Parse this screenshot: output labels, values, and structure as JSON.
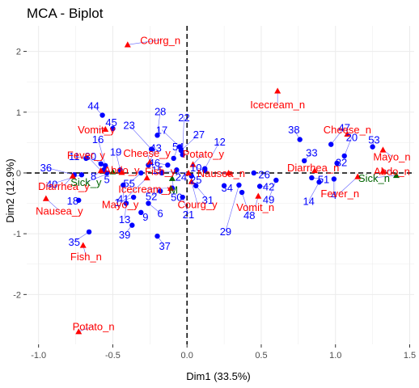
{
  "colors": {
    "individuals": "#0000ff",
    "variables": "#ff0000",
    "supplementary": "#006400",
    "repel_line": "#6666ff",
    "grid": "#ebebeb",
    "zero_line": "#000000"
  },
  "chart_data": {
    "type": "scatter",
    "title": "MCA - Biplot",
    "xlabel": "Dim1 (33.5%)",
    "ylabel": "Dim2 (12.9%)",
    "xlim": [
      -1.08,
      1.53
    ],
    "ylim": [
      -2.82,
      2.42
    ],
    "xticks": [
      -1.0,
      -0.5,
      0.0,
      0.5,
      1.0,
      1.5
    ],
    "xtick_labels": [
      "-1.0",
      "-0.5",
      "0.0",
      "0.5",
      "1.0",
      "1.5"
    ],
    "yticks": [
      -2,
      -1,
      0,
      1,
      2
    ],
    "ytick_labels": [
      "-2",
      "-1",
      "0",
      "1",
      "2"
    ],
    "grid": true,
    "legend": "none",
    "individuals": [
      {
        "label": "1",
        "x": -0.36,
        "y": -0.4,
        "lx": -0.47,
        "ly": -0.48
      },
      {
        "label": "4",
        "x": 0.99,
        "y": -0.1,
        "lx": 0.99,
        "ly": -0.36
      },
      {
        "label": "5",
        "x": -0.54,
        "y": 0.0,
        "lx": -0.54,
        "ly": -0.1
      },
      {
        "label": "6",
        "x": -0.26,
        "y": -0.5,
        "lx": -0.18,
        "ly": -0.66
      },
      {
        "label": "8",
        "x": -0.56,
        "y": 0.05,
        "lx": -0.63,
        "ly": -0.05
      },
      {
        "label": "9",
        "x": -0.31,
        "y": -0.65,
        "lx": -0.28,
        "ly": -0.72
      },
      {
        "label": "10",
        "x": 0.12,
        "y": 0.04,
        "lx": 0.06,
        "ly": 0.09
      },
      {
        "label": "11",
        "x": -0.68,
        "y": 0.24,
        "lx": -0.76,
        "ly": 0.28
      },
      {
        "label": "12",
        "x": 0.12,
        "y": 0.07,
        "lx": 0.22,
        "ly": 0.52
      },
      {
        "label": "13",
        "x": -0.41,
        "y": -0.5,
        "lx": -0.42,
        "ly": -0.76
      },
      {
        "label": "14",
        "x": 0.89,
        "y": -0.15,
        "lx": 0.82,
        "ly": -0.46
      },
      {
        "label": "15",
        "x": -0.17,
        "y": 0.0,
        "lx": -0.2,
        "ly": 0.05
      },
      {
        "label": "16",
        "x": -0.55,
        "y": 0.12,
        "lx": -0.6,
        "ly": 0.56
      },
      {
        "label": "17",
        "x": -0.05,
        "y": 0.43,
        "lx": -0.17,
        "ly": 0.71
      },
      {
        "label": "18",
        "x": -0.73,
        "y": -0.45,
        "lx": -0.77,
        "ly": -0.45
      },
      {
        "label": "19",
        "x": -0.45,
        "y": 0.05,
        "lx": -0.48,
        "ly": 0.35
      },
      {
        "label": "20",
        "x": 1.06,
        "y": 0.28,
        "lx": 1.11,
        "ly": 0.59
      },
      {
        "label": "21",
        "x": -0.03,
        "y": -0.4,
        "lx": 0.01,
        "ly": -0.68
      },
      {
        "label": "22",
        "x": -0.03,
        "y": 0.3,
        "lx": -0.02,
        "ly": 0.92
      },
      {
        "label": "23",
        "x": -0.24,
        "y": 0.39,
        "lx": -0.39,
        "ly": 0.79
      },
      {
        "label": "24",
        "x": -0.07,
        "y": 0.05,
        "lx": -0.04,
        "ly": -0.06
      },
      {
        "label": "25",
        "x": 0.03,
        "y": -0.05,
        "lx": 0.06,
        "ly": -0.11
      },
      {
        "label": "26",
        "x": 0.45,
        "y": 0.0,
        "lx": 0.52,
        "ly": -0.02
      },
      {
        "label": "27",
        "x": -0.04,
        "y": 0.37,
        "lx": 0.08,
        "ly": 0.64
      },
      {
        "label": "28",
        "x": -0.2,
        "y": 0.62,
        "lx": -0.18,
        "ly": 1.02
      },
      {
        "label": "29",
        "x": 0.35,
        "y": -0.2,
        "lx": 0.26,
        "ly": -0.96
      },
      {
        "label": "30",
        "x": -0.58,
        "y": 0.15,
        "lx": -0.65,
        "ly": 0.28
      },
      {
        "label": "31",
        "x": 0.06,
        "y": -0.21,
        "lx": 0.14,
        "ly": -0.44
      },
      {
        "label": "32",
        "x": 1.01,
        "y": 0.16,
        "lx": 1.04,
        "ly": 0.18
      },
      {
        "label": "33",
        "x": 0.79,
        "y": 0.2,
        "lx": 0.84,
        "ly": 0.34
      },
      {
        "label": "34",
        "x": 0.25,
        "y": -0.21,
        "lx": 0.27,
        "ly": -0.24
      },
      {
        "label": "35",
        "x": -0.66,
        "y": -0.97,
        "lx": -0.76,
        "ly": -1.13
      },
      {
        "label": "36",
        "x": -0.76,
        "y": -0.03,
        "lx": -0.95,
        "ly": 0.09
      },
      {
        "label": "37",
        "x": -0.2,
        "y": -1.04,
        "lx": -0.15,
        "ly": -1.2
      },
      {
        "label": "38",
        "x": 0.76,
        "y": 0.55,
        "lx": 0.72,
        "ly": 0.72
      },
      {
        "label": "39",
        "x": -0.37,
        "y": -0.86,
        "lx": -0.42,
        "ly": -1.01
      },
      {
        "label": "40",
        "x": -0.71,
        "y": -0.03,
        "lx": -0.91,
        "ly": -0.18
      },
      {
        "label": "41",
        "x": -0.43,
        "y": -0.2,
        "lx": -0.43,
        "ly": -0.42
      },
      {
        "label": "42",
        "x": 0.49,
        "y": -0.22,
        "lx": 0.55,
        "ly": -0.22
      },
      {
        "label": "43",
        "x": -0.26,
        "y": 0.13,
        "lx": -0.21,
        "ly": 0.42
      },
      {
        "label": "44",
        "x": -0.57,
        "y": 0.95,
        "lx": -0.63,
        "ly": 1.11
      },
      {
        "label": "45",
        "x": -0.5,
        "y": 0.73,
        "lx": -0.51,
        "ly": 0.84
      },
      {
        "label": "46",
        "x": -0.13,
        "y": 0.13,
        "lx": -0.22,
        "ly": 0.17
      },
      {
        "label": "47",
        "x": 0.97,
        "y": 0.47,
        "lx": 1.06,
        "ly": 0.75
      },
      {
        "label": "48",
        "x": 0.37,
        "y": -0.32,
        "lx": 0.42,
        "ly": -0.69
      },
      {
        "label": "49",
        "x": 0.6,
        "y": -0.12,
        "lx": 0.55,
        "ly": -0.43
      },
      {
        "label": "50",
        "x": -0.1,
        "y": -0.25,
        "lx": -0.07,
        "ly": -0.39
      },
      {
        "label": "51",
        "x": 0.84,
        "y": -0.08,
        "lx": 0.92,
        "ly": -0.1
      },
      {
        "label": "52",
        "x": -0.18,
        "y": -0.3,
        "lx": -0.24,
        "ly": -0.38
      },
      {
        "label": "53",
        "x": 1.25,
        "y": 0.43,
        "lx": 1.26,
        "ly": 0.55
      },
      {
        "label": "54",
        "x": -0.09,
        "y": 0.24,
        "lx": -0.06,
        "ly": 0.44
      },
      {
        "label": "55",
        "x": -0.31,
        "y": 0.0,
        "lx": -0.39,
        "ly": -0.17
      }
    ],
    "variables": [
      {
        "label": "Abdo_n",
        "x": 1.32,
        "y": 0.03,
        "lx": 1.38,
        "ly": 0.03,
        "shift_x": 0,
        "shift_y": 0
      },
      {
        "label": "Abdo_y",
        "x": -0.44,
        "y": 0.01,
        "lx": -0.44,
        "ly": 0.05,
        "shift_x": 0,
        "shift_y": 0
      },
      {
        "label": "Cheese_n",
        "x": 1.08,
        "y": 0.64,
        "lx": 1.08,
        "ly": 0.72,
        "shift_x": 0,
        "shift_y": 0
      },
      {
        "label": "Cheese_y",
        "x": -0.25,
        "y": 0.18,
        "lx": -0.27,
        "ly": 0.33,
        "shift_x": 0,
        "shift_y": 0
      },
      {
        "label": "Courg_n",
        "x": -0.4,
        "y": 2.11,
        "lx": -0.18,
        "ly": 2.19,
        "shift_x": 0,
        "shift_y": 0
      },
      {
        "label": "Courg_y",
        "x": 0.03,
        "y": -0.14,
        "lx": 0.07,
        "ly": -0.51,
        "shift_x": 0,
        "shift_y": 0
      },
      {
        "label": "Diarrhea_n",
        "x": 0.86,
        "y": 0.04,
        "lx": 0.85,
        "ly": 0.09,
        "shift_x": 0,
        "shift_y": 0
      },
      {
        "label": "Diarrhea_y",
        "x": -0.77,
        "y": -0.05,
        "lx": -0.83,
        "ly": -0.21,
        "shift_x": 0,
        "shift_y": 0
      },
      {
        "label": "Fever_n",
        "x": 1.15,
        "y": -0.06,
        "lx": 1.03,
        "ly": -0.33,
        "shift_x": 0,
        "shift_y": 0
      },
      {
        "label": "Fever_y",
        "x": -0.58,
        "y": 0.04,
        "lx": -0.68,
        "ly": 0.3,
        "shift_x": 0,
        "shift_y": 0
      },
      {
        "label": "Fish_n",
        "x": -0.7,
        "y": -1.19,
        "lx": -0.68,
        "ly": -1.37,
        "shift_x": 0,
        "shift_y": 0
      },
      {
        "label": "Fish_y",
        "x": 0.01,
        "y": 0.0,
        "lx": -0.18,
        "ly": 0.03,
        "shift_x": 0,
        "shift_y": 0
      },
      {
        "label": "Icecream_n",
        "x": 0.61,
        "y": 1.35,
        "lx": 0.61,
        "ly": 1.13,
        "shift_x": 0,
        "shift_y": 0
      },
      {
        "label": "Icecream_y",
        "x": -0.11,
        "y": -0.25,
        "lx": -0.28,
        "ly": -0.26,
        "shift_x": 0,
        "shift_y": 0
      },
      {
        "label": "Mayo_n",
        "x": 1.32,
        "y": 0.38,
        "lx": 1.38,
        "ly": 0.27,
        "shift_x": 0,
        "shift_y": 0
      },
      {
        "label": "Mayo_y",
        "x": -0.27,
        "y": -0.08,
        "lx": -0.45,
        "ly": -0.51,
        "shift_x": 0,
        "shift_y": 0
      },
      {
        "label": "Nausea_n",
        "x": 0.28,
        "y": 0.0,
        "lx": 0.23,
        "ly": 0.0,
        "shift_x": 0,
        "shift_y": 0
      },
      {
        "label": "Nausea_y",
        "x": -0.95,
        "y": -0.42,
        "lx": -0.86,
        "ly": -0.62,
        "shift_x": 0,
        "shift_y": 0
      },
      {
        "label": "Potato_n",
        "x": -0.73,
        "y": -2.61,
        "lx": -0.63,
        "ly": -2.52,
        "shift_x": 0,
        "shift_y": 0
      },
      {
        "label": "Potato_y",
        "x": 0.04,
        "y": 0.14,
        "lx": 0.11,
        "ly": 0.32,
        "shift_x": 0,
        "shift_y": 0
      },
      {
        "label": "Vomit_n",
        "x": 0.48,
        "y": -0.38,
        "lx": 0.46,
        "ly": -0.56,
        "shift_x": 0,
        "shift_y": 0
      },
      {
        "label": "Vomit_y",
        "x": -0.55,
        "y": 0.72,
        "lx": -0.61,
        "ly": 0.72,
        "shift_x": 0,
        "shift_y": 0
      }
    ],
    "supplementary": [
      {
        "label": "Sick_n",
        "x": 1.41,
        "y": -0.04,
        "lx": 1.26,
        "ly": -0.08
      },
      {
        "label": "Sick_y",
        "x": -0.5,
        "y": 0.02,
        "lx": -0.68,
        "ly": -0.15
      },
      {
        "label": "M",
        "x": -0.1,
        "y": -0.09,
        "lx": -0.09,
        "ly": -0.27
      }
    ]
  }
}
